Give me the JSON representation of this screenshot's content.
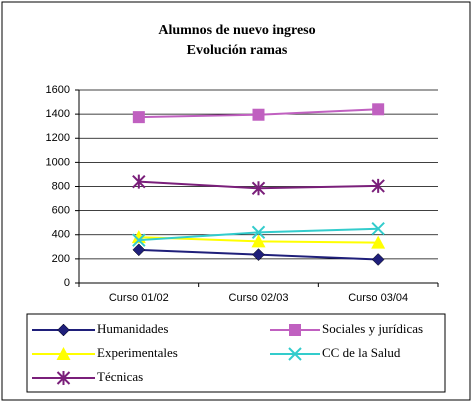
{
  "chart_data": {
    "type": "line",
    "title": "Alumnos de nuevo ingreso",
    "subtitle": "Evolución ramas",
    "categories": [
      "Curso 01/02",
      "Curso 02/03",
      "Curso 03/04"
    ],
    "series": [
      {
        "name": "Humanidades",
        "color": "#1f1f7a",
        "marker": "diamond",
        "values": [
          275,
          235,
          195
        ]
      },
      {
        "name": "Sociales y jurídicas",
        "color": "#c060c0",
        "marker": "square",
        "values": [
          1375,
          1395,
          1440
        ]
      },
      {
        "name": "Experimentales",
        "color": "#ffff00",
        "marker": "triangle",
        "values": [
          380,
          345,
          335
        ]
      },
      {
        "name": "CC de la Salud",
        "color": "#33cccc",
        "marker": "x",
        "values": [
          355,
          420,
          450
        ]
      },
      {
        "name": "Técnicas",
        "color": "#7a1f7a",
        "marker": "star",
        "values": [
          840,
          785,
          805
        ]
      }
    ],
    "ylim": [
      0,
      1600
    ],
    "yticks": [
      0,
      200,
      400,
      600,
      800,
      1000,
      1200,
      1400,
      1600
    ],
    "grid": true,
    "legend": "bottom"
  }
}
